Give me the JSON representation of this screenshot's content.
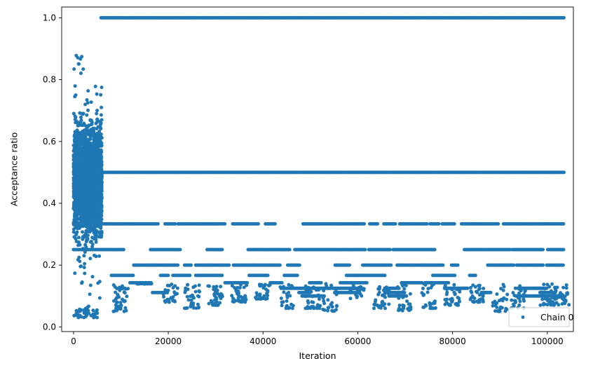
{
  "chart_data": {
    "type": "scatter",
    "title": "",
    "xlabel": "Iteration",
    "ylabel": "Acceptance ratio",
    "xlim": [
      -2500,
      105500
    ],
    "ylim": [
      -0.015,
      1.035
    ],
    "xticks": [
      0,
      20000,
      40000,
      60000,
      80000,
      100000
    ],
    "yticks": [
      0.0,
      0.2,
      0.4,
      0.6,
      0.8,
      1.0
    ],
    "xtick_labels": [
      "0",
      "20000",
      "40000",
      "60000",
      "80000",
      "100000"
    ],
    "ytick_labels": [
      "0.0",
      "0.2",
      "0.4",
      "0.6",
      "0.8",
      "1.0"
    ],
    "grid": false,
    "legend": {
      "location": "lower right",
      "entries": [
        "Chain 0"
      ]
    },
    "series": [
      {
        "name": "Chain 0",
        "color": "#1f77b4",
        "marker": "circle",
        "burn_in_phase": {
          "x_range": [
            0,
            6000
          ],
          "y_range": [
            0.03,
            0.89
          ],
          "dense_y_range": [
            0.15,
            0.75
          ]
        },
        "plateau_levels": [
          {
            "y": 1.0,
            "x_range": [
              5800,
              103500
            ],
            "continuous": true
          },
          {
            "y": 0.5,
            "x_range": [
              0,
              103500
            ],
            "continuous": true
          },
          {
            "y": 0.3333,
            "x_range": [
              0,
              103500
            ],
            "continuous": false
          },
          {
            "y": 0.25,
            "x_range": [
              0,
              103500
            ],
            "continuous": false
          },
          {
            "y": 0.2,
            "x_range": [
              0,
              103500
            ],
            "continuous": false
          },
          {
            "y": 0.1667,
            "x_range": [
              8000,
              103500
            ],
            "continuous": false
          },
          {
            "y": 0.1429,
            "x_range": [
              8000,
              103500
            ],
            "continuous": false
          },
          {
            "y": 0.125,
            "x_range": [
              8000,
              103500
            ],
            "continuous": false
          },
          {
            "y": 0.1111,
            "x_range": [
              8000,
              103500
            ],
            "continuous": false
          },
          {
            "y": 0.1,
            "x_range": [
              8000,
              103500
            ],
            "continuous": false
          }
        ],
        "low_value_clusters": [
          {
            "x": 10000,
            "y_min": 0.05
          },
          {
            "x": 15000,
            "y_min": 0.14
          },
          {
            "x": 20500,
            "y_min": 0.08
          },
          {
            "x": 25000,
            "y_min": 0.06
          },
          {
            "x": 30000,
            "y_min": 0.07
          },
          {
            "x": 35000,
            "y_min": 0.08
          },
          {
            "x": 40000,
            "y_min": 0.09
          },
          {
            "x": 45000,
            "y_min": 0.06
          },
          {
            "x": 50500,
            "y_min": 0.06
          },
          {
            "x": 54000,
            "y_min": 0.05
          },
          {
            "x": 60000,
            "y_min": 0.09
          },
          {
            "x": 65000,
            "y_min": 0.06
          },
          {
            "x": 70000,
            "y_min": 0.05
          },
          {
            "x": 75000,
            "y_min": 0.06
          },
          {
            "x": 80000,
            "y_min": 0.07
          },
          {
            "x": 85000,
            "y_min": 0.08
          },
          {
            "x": 90000,
            "y_min": 0.05
          },
          {
            "x": 94000,
            "y_min": 0.06
          },
          {
            "x": 100000,
            "y_min": 0.07
          },
          {
            "x": 103000,
            "y_min": 0.07
          }
        ]
      }
    ]
  }
}
